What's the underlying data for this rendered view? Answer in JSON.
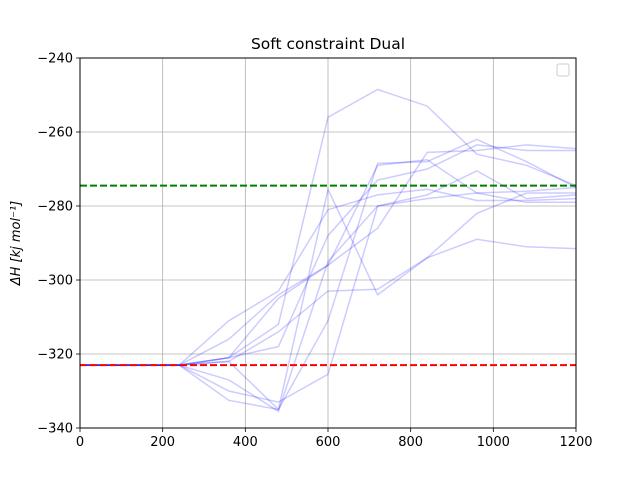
{
  "chart_data": {
    "type": "line",
    "title": "Soft constraint Dual",
    "xlabel": "",
    "ylabel": "ΔH [kj mol⁻¹]",
    "xlim": [
      0,
      1200
    ],
    "ylim": [
      -340,
      -240
    ],
    "xticks": [
      0,
      200,
      400,
      600,
      800,
      1000,
      1200
    ],
    "yticks": [
      -240,
      -260,
      -280,
      -300,
      -320,
      -340
    ],
    "xtick_labels": [
      "0",
      "200",
      "400",
      "600",
      "800",
      "1000",
      "1200"
    ],
    "ytick_labels": [
      "−240",
      "−260",
      "−280",
      "−300",
      "−320",
      "−340"
    ],
    "grid": true,
    "legend": {
      "shown": true,
      "placement": "top-right",
      "entries": []
    },
    "line_color": "#0000ff",
    "line_alpha": 0.2,
    "reference_lines": [
      {
        "y": -274.5,
        "color": "#008000",
        "style": "dashed"
      },
      {
        "y": -323,
        "color": "#ff0000",
        "style": "dashed"
      }
    ],
    "series": [
      {
        "x": [
          0,
          120,
          240,
          360,
          480,
          600,
          720,
          840,
          960,
          1080,
          1200
        ],
        "y": [
          -323,
          -323,
          -323,
          -321,
          -312,
          -256,
          -248.5,
          -253,
          -266,
          -269,
          -274.5
        ]
      },
      {
        "x": [
          0,
          120,
          240,
          360,
          480,
          600,
          720,
          840,
          960,
          1080,
          1200
        ],
        "y": [
          -323,
          -323,
          -323,
          -321,
          -305,
          -296,
          -269,
          -267.5,
          -276.5,
          -279,
          -279
        ]
      },
      {
        "x": [
          0,
          120,
          240,
          360,
          480,
          600,
          720,
          840,
          960,
          1080,
          1200
        ],
        "y": [
          -323,
          -323,
          -323,
          -321,
          -318,
          -288,
          -273,
          -270,
          -263.5,
          -265,
          -265
        ]
      },
      {
        "x": [
          0,
          120,
          240,
          360,
          480,
          600,
          720,
          840,
          960,
          1080,
          1200
        ],
        "y": [
          -323,
          -323,
          -323,
          -316,
          -304,
          -296,
          -286,
          -265.5,
          -265,
          -263.5,
          -264.5
        ]
      },
      {
        "x": [
          0,
          120,
          240,
          360,
          480,
          600,
          720,
          840,
          960,
          1080,
          1200
        ],
        "y": [
          -323,
          -323,
          -323,
          -311,
          -303,
          -281,
          -277,
          -275.5,
          -278.5,
          -278.5,
          -278
        ]
      },
      {
        "x": [
          0,
          120,
          240,
          360,
          480,
          600,
          720,
          840,
          960,
          1080,
          1200
        ],
        "y": [
          -323,
          -323,
          -323,
          -322,
          -314,
          -303,
          -302.5,
          -294,
          -282,
          -276.5,
          -276.5
        ]
      },
      {
        "x": [
          0,
          120,
          240,
          360,
          480,
          600,
          720,
          840,
          960,
          1080,
          1200
        ],
        "y": [
          -323,
          -323,
          -323,
          -327,
          -335.5,
          -295,
          -280,
          -277,
          -270.5,
          -278,
          -277
        ]
      },
      {
        "x": [
          0,
          120,
          240,
          360,
          480,
          600,
          720,
          840,
          960,
          1080,
          1200
        ],
        "y": [
          -323,
          -323,
          -323,
          -330,
          -333,
          -325.5,
          -280,
          -278,
          -276.5,
          -276,
          -275
        ]
      },
      {
        "x": [
          0,
          120,
          240,
          360,
          480,
          600,
          720,
          840,
          960,
          1080,
          1200
        ],
        "y": [
          -323,
          -323,
          -323,
          -322,
          -335,
          -275.5,
          -304,
          -294,
          -289,
          -291,
          -291.5
        ]
      },
      {
        "x": [
          0,
          120,
          240,
          360,
          480,
          600,
          720,
          840,
          960,
          1080,
          1200
        ],
        "y": [
          -323,
          -323,
          -323,
          -332.5,
          -335,
          -311,
          -268.5,
          -268,
          -262,
          -268,
          -275
        ]
      }
    ]
  }
}
